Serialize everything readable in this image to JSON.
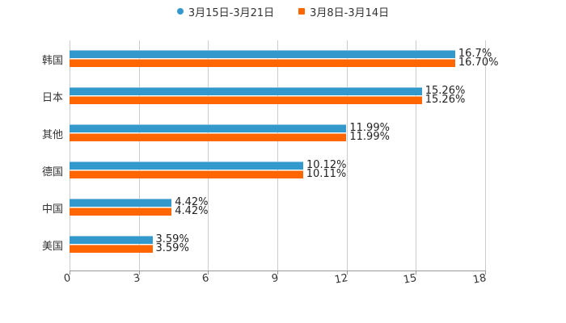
{
  "chart_data": {
    "type": "bar",
    "orientation": "horizontal",
    "title": "",
    "xlabel": "",
    "ylabel": "",
    "categories": [
      "韩国",
      "日本",
      "其他",
      "德国",
      "中国",
      "美国"
    ],
    "series": [
      {
        "name": "3月15日-3月21日",
        "color": "#3399cc",
        "marker": "circle",
        "values": [
          16.7,
          15.26,
          11.99,
          10.12,
          4.42,
          3.59
        ],
        "labels": [
          "16.7%",
          "15.26%",
          "11.99%",
          "10.12%",
          "4.42%",
          "3.59%"
        ]
      },
      {
        "name": "3月8日-3月14日",
        "color": "#ff6600",
        "marker": "square",
        "values": [
          16.7,
          15.26,
          11.99,
          10.11,
          4.42,
          3.59
        ],
        "labels": [
          "16.70%",
          "15.26%",
          "11.99%",
          "10.11%",
          "4.42%",
          "3.59%"
        ]
      }
    ],
    "xlim": [
      0,
      18
    ],
    "xticks": [
      "0",
      "3",
      "6",
      "9",
      "12",
      "15",
      "18"
    ],
    "grid": true,
    "legend_position": "top"
  },
  "legend": {
    "items": [
      {
        "label": "3月15日-3月21日",
        "color": "#3399cc"
      },
      {
        "label": "3月8日-3月14日",
        "color": "#ff6600"
      }
    ]
  }
}
